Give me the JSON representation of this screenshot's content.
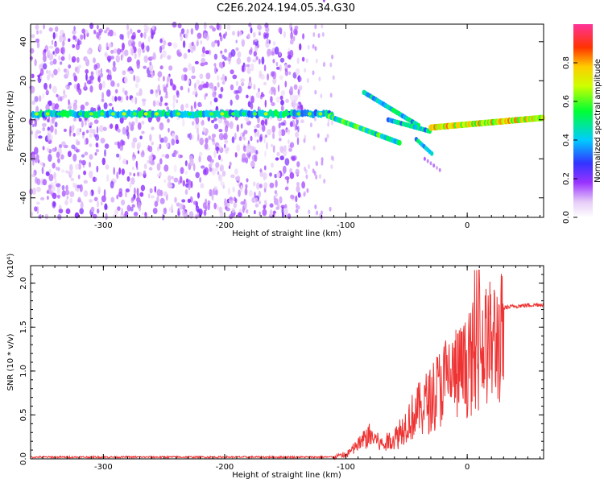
{
  "figure_title": "C2E6.2024.194.05.34.G30",
  "chart_data": [
    {
      "type": "heatmap",
      "xlabel": "Height of straight line (km)",
      "ylabel": "Frequency (Hz)",
      "xlim": [
        -360,
        63
      ],
      "ylim": [
        -50,
        49
      ],
      "x_ticks": [
        -300,
        -200,
        -100,
        0
      ],
      "y_ticks": [
        -40,
        -20,
        0,
        20,
        40
      ],
      "colorbar": {
        "label": "Normalized spectral amplitude",
        "range": [
          0.0,
          1.0
        ],
        "ticks": [
          "0.0",
          "0.2",
          "0.4",
          "0.6",
          "0.8"
        ]
      },
      "features": {
        "carrier_line_freq_hz": 3,
        "bright_end_freq_hz": 1
      }
    },
    {
      "type": "line",
      "xlabel": "Height of straight line (km)",
      "ylabel": "SNR (10 * v/v)",
      "y_multiplier": "(x10⁴)",
      "xlim": [
        -360,
        63
      ],
      "ylim": [
        0,
        2.2
      ],
      "x_ticks": [
        -300,
        -200,
        -100,
        0
      ],
      "y_ticks": [
        "0.0",
        "0.5",
        "1.0",
        "1.5",
        "2.0"
      ],
      "color": "#ee3333",
      "series_envelope": {
        "x": [
          -360,
          -120,
          -100,
          -90,
          -80,
          -70,
          -60,
          -50,
          -40,
          -30,
          -20,
          -10,
          0,
          10,
          20,
          30,
          40,
          50,
          63
        ],
        "y": [
          0.01,
          0.02,
          0.05,
          0.2,
          0.35,
          0.2,
          0.3,
          0.5,
          0.7,
          0.85,
          1.1,
          1.2,
          1.3,
          1.55,
          1.65,
          1.72,
          1.74,
          1.75,
          1.76
        ]
      }
    }
  ]
}
